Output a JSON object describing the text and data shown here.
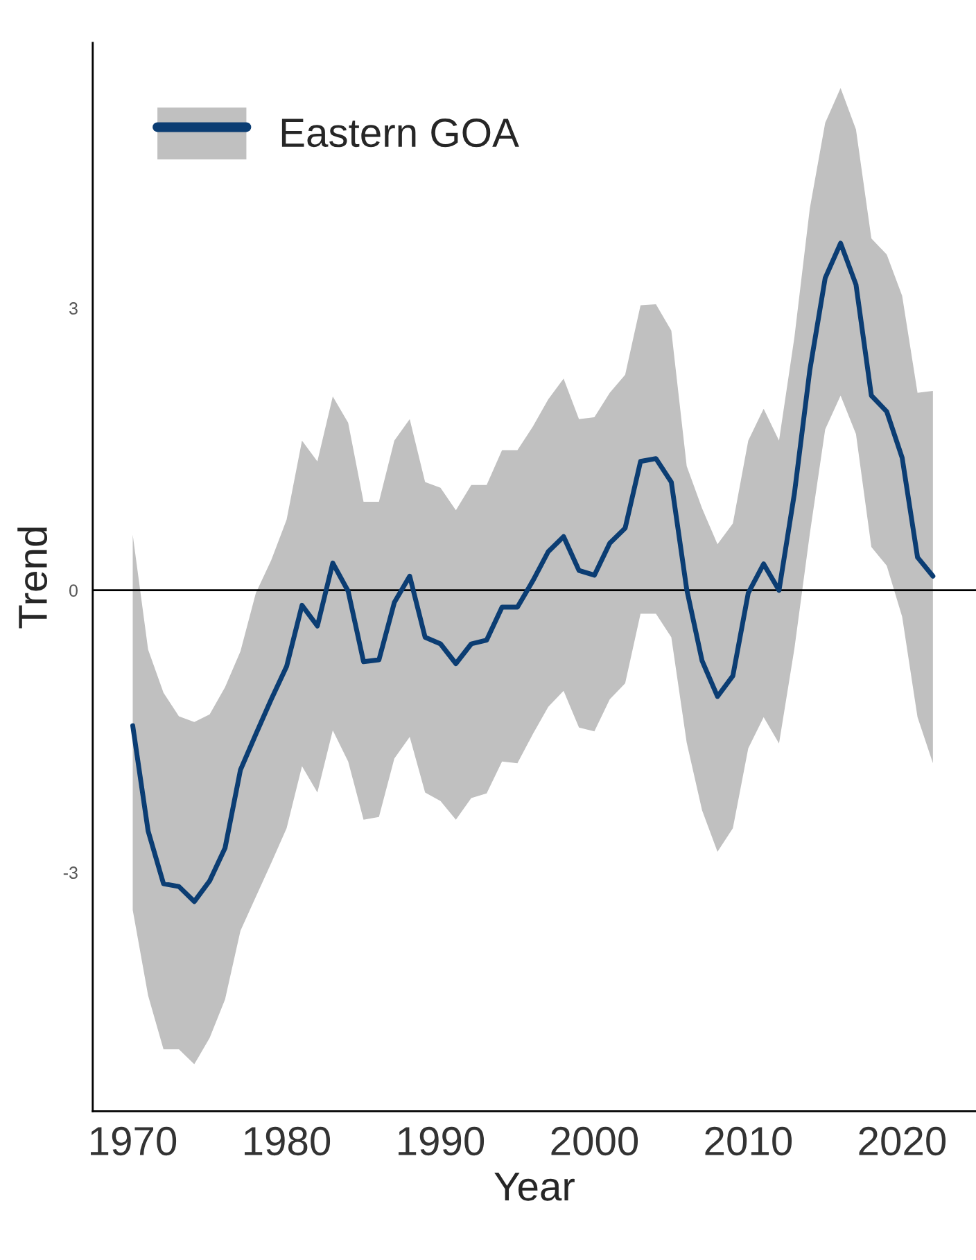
{
  "chart_data": {
    "type": "line",
    "xlabel": "Year",
    "ylabel": "Trend",
    "x": [
      1970,
      1971,
      1972,
      1973,
      1974,
      1975,
      1976,
      1977,
      1978,
      1979,
      1980,
      1981,
      1982,
      1983,
      1984,
      1985,
      1986,
      1987,
      1988,
      1989,
      1990,
      1991,
      1992,
      1993,
      1994,
      1995,
      1996,
      1997,
      1998,
      1999,
      2000,
      2001,
      2002,
      2003,
      2004,
      2005,
      2006,
      2007,
      2008,
      2009,
      2010,
      2011,
      2012,
      2013,
      2014,
      2015,
      2016,
      2017,
      2018,
      2019,
      2020,
      2021,
      2022
    ],
    "series": [
      {
        "name": "Eastern GOA",
        "color": "#0b3d73",
        "values": [
          -1.44,
          -2.56,
          -3.12,
          -3.15,
          -3.31,
          -3.09,
          -2.74,
          -1.91,
          -1.53,
          -1.16,
          -0.81,
          -0.16,
          -0.38,
          0.29,
          -0.01,
          -0.76,
          -0.74,
          -0.13,
          0.15,
          -0.5,
          -0.57,
          -0.78,
          -0.57,
          -0.53,
          -0.18,
          -0.18,
          0.1,
          0.41,
          0.57,
          0.21,
          0.16,
          0.5,
          0.66,
          1.37,
          1.4,
          1.15,
          0.01,
          -0.75,
          -1.13,
          -0.91,
          -0.03,
          0.28,
          0,
          1.03,
          2.34,
          3.32,
          3.69,
          3.25,
          2.07,
          1.9,
          1.41,
          0.35,
          0.15
        ],
        "upper": [
          0.59,
          -0.63,
          -1.09,
          -1.34,
          -1.4,
          -1.32,
          -1.03,
          -0.65,
          -0.03,
          0.32,
          0.75,
          1.59,
          1.37,
          2.06,
          1.78,
          0.94,
          0.94,
          1.59,
          1.82,
          1.15,
          1.09,
          0.85,
          1.12,
          1.12,
          1.49,
          1.49,
          1.74,
          2.03,
          2.25,
          1.82,
          1.84,
          2.1,
          2.29,
          3.03,
          3.04,
          2.76,
          1.32,
          0.87,
          0.49,
          0.71,
          1.59,
          1.93,
          1.59,
          2.69,
          4.06,
          4.97,
          5.34,
          4.9,
          3.74,
          3.57,
          3.13,
          2.1,
          2.12
        ],
        "lower": [
          -3.4,
          -4.31,
          -4.88,
          -4.88,
          -5.04,
          -4.76,
          -4.35,
          -3.62,
          -3.26,
          -2.9,
          -2.53,
          -1.87,
          -2.15,
          -1.49,
          -1.82,
          -2.44,
          -2.41,
          -1.79,
          -1.56,
          -2.15,
          -2.24,
          -2.44,
          -2.21,
          -2.16,
          -1.82,
          -1.84,
          -1.53,
          -1.24,
          -1.07,
          -1.46,
          -1.5,
          -1.16,
          -0.99,
          -0.25,
          -0.25,
          -0.5,
          -1.62,
          -2.34,
          -2.78,
          -2.53,
          -1.68,
          -1.35,
          -1.63,
          -0.62,
          0.6,
          1.71,
          2.07,
          1.66,
          0.46,
          0.26,
          -0.28,
          -1.35,
          -1.84
        ]
      }
    ],
    "xlim": [
      1967.4,
      2024.8
    ],
    "xticks": [
      1970,
      1980,
      1990,
      2000,
      2010,
      2020
    ],
    "ylim": [
      -5.54,
      5.82
    ],
    "yticks": [
      -3,
      0,
      3
    ],
    "ref_lines": [
      {
        "axis": "y",
        "value": 0,
        "color": "#000000",
        "line_style": "solid"
      }
    ],
    "grid": false,
    "legend": "top left",
    "marker": "none",
    "line_style": "solid"
  }
}
